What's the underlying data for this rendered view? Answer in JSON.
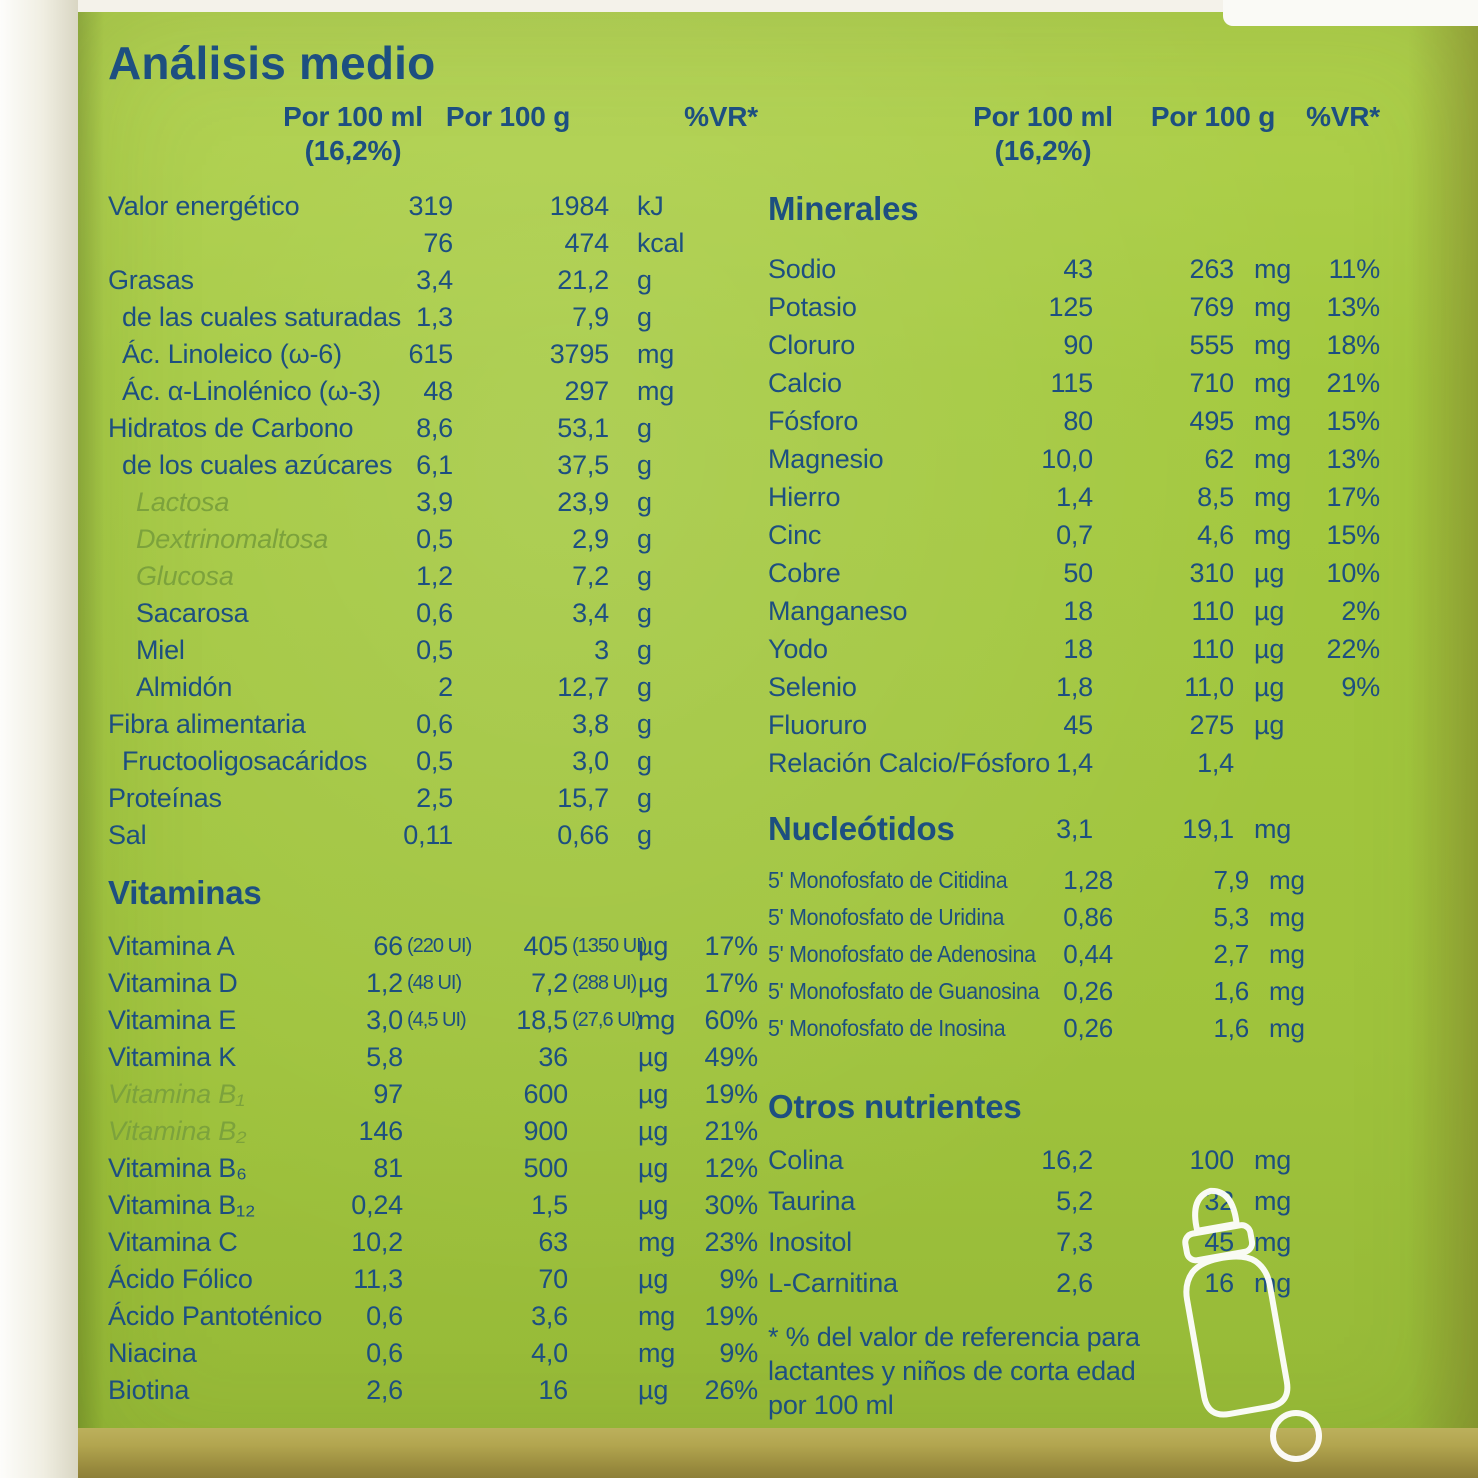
{
  "title": "Análisis medio",
  "columns": {
    "per100ml": "Por 100 ml",
    "per100ml_sub": "(16,2%)",
    "per100g": "Por 100 g",
    "vr": "%VR*"
  },
  "left": {
    "main_rows": [
      {
        "label": "Valor energético",
        "v1": "319",
        "v2": "1984",
        "unit": "kJ"
      },
      {
        "label": "",
        "v1": "76",
        "v2": "474",
        "unit": "kcal"
      },
      {
        "label": "Grasas",
        "v1": "3,4",
        "v2": "21,2",
        "unit": "g"
      },
      {
        "label": "de las cuales saturadas",
        "v1": "1,3",
        "v2": "7,9",
        "unit": "g",
        "indent": 1
      },
      {
        "label": "Ác. Linoleico (ω-6)",
        "v1": "615",
        "v2": "3795",
        "unit": "mg",
        "indent": 1
      },
      {
        "label": "Ác. α-Linolénico (ω-3)",
        "v1": "48",
        "v2": "297",
        "unit": "mg",
        "indent": 1
      },
      {
        "label": "Hidratos de Carbono",
        "v1": "8,6",
        "v2": "53,1",
        "unit": "g"
      },
      {
        "label": "de los cuales azúcares",
        "v1": "6,1",
        "v2": "37,5",
        "unit": "g",
        "indent": 1
      },
      {
        "label": "Lactosa",
        "v1": "3,9",
        "v2": "23,9",
        "unit": "g",
        "indent": 2,
        "style": "light"
      },
      {
        "label": "Dextrinomaltosa",
        "v1": "0,5",
        "v2": "2,9",
        "unit": "g",
        "indent": 2,
        "style": "light"
      },
      {
        "label": "Glucosa",
        "v1": "1,2",
        "v2": "7,2",
        "unit": "g",
        "indent": 2,
        "style": "light"
      },
      {
        "label": "Sacarosa",
        "v1": "0,6",
        "v2": "3,4",
        "unit": "g",
        "indent": 2
      },
      {
        "label": "Miel",
        "v1": "0,5",
        "v2": "3",
        "unit": "g",
        "indent": 2
      },
      {
        "label": "Almidón",
        "v1": "2",
        "v2": "12,7",
        "unit": "g",
        "indent": 2
      },
      {
        "label": "Fibra alimentaria",
        "v1": "0,6",
        "v2": "3,8",
        "unit": "g"
      },
      {
        "label": "Fructooligosacáridos",
        "v1": "0,5",
        "v2": "3,0",
        "unit": "g",
        "indent": 1
      },
      {
        "label": "Proteínas",
        "v1": "2,5",
        "v2": "15,7",
        "unit": "g"
      },
      {
        "label": "Sal",
        "v1": "0,11",
        "v2": "0,66",
        "unit": "g"
      }
    ],
    "vitamins_title": "Vitaminas",
    "vitamin_rows": [
      {
        "label": "Vitamina A",
        "v1": "66",
        "v1ui": "(220 UI)",
        "v2": "405",
        "v2ui": "(1350 UI)",
        "unit": "µg",
        "vr": "17%"
      },
      {
        "label": "Vitamina D",
        "v1": "1,2",
        "v1ui": "(48 UI)",
        "v2": "7,2",
        "v2ui": "(288 UI)",
        "unit": "µg",
        "vr": "17%"
      },
      {
        "label": "Vitamina E",
        "v1": "3,0",
        "v1ui": "(4,5 UI)",
        "v2": "18,5",
        "v2ui": "(27,6 UI)",
        "unit": "mg",
        "vr": "60%"
      },
      {
        "label": "Vitamina K",
        "v1": "5,8",
        "v2": "36",
        "unit": "µg",
        "vr": "49%"
      },
      {
        "label": "Vitamina B₁",
        "v1": "97",
        "v2": "600",
        "unit": "µg",
        "vr": "19%",
        "style": "light"
      },
      {
        "label": "Vitamina B₂",
        "v1": "146",
        "v2": "900",
        "unit": "µg",
        "vr": "21%",
        "style": "light"
      },
      {
        "label": "Vitamina B₆",
        "v1": "81",
        "v2": "500",
        "unit": "µg",
        "vr": "12%"
      },
      {
        "label": "Vitamina B₁₂",
        "v1": "0,24",
        "v2": "1,5",
        "unit": "µg",
        "vr": "30%"
      },
      {
        "label": "Vitamina C",
        "v1": "10,2",
        "v2": "63",
        "unit": "mg",
        "vr": "23%"
      },
      {
        "label": "Ácido Fólico",
        "v1": "11,3",
        "v2": "70",
        "unit": "µg",
        "vr": "9%"
      },
      {
        "label": "Ácido Pantoténico",
        "v1": "0,6",
        "v2": "3,6",
        "unit": "mg",
        "vr": "19%"
      },
      {
        "label": "Niacina",
        "v1": "0,6",
        "v2": "4,0",
        "unit": "mg",
        "vr": "9%"
      },
      {
        "label": "Biotina",
        "v1": "2,6",
        "v2": "16",
        "unit": "µg",
        "vr": "26%"
      }
    ]
  },
  "right": {
    "minerals_title": "Minerales",
    "mineral_rows": [
      {
        "label": "Sodio",
        "v1": "43",
        "v2": "263",
        "unit": "mg",
        "vr": "11%"
      },
      {
        "label": "Potasio",
        "v1": "125",
        "v2": "769",
        "unit": "mg",
        "vr": "13%"
      },
      {
        "label": "Cloruro",
        "v1": "90",
        "v2": "555",
        "unit": "mg",
        "vr": "18%"
      },
      {
        "label": "Calcio",
        "v1": "115",
        "v2": "710",
        "unit": "mg",
        "vr": "21%"
      },
      {
        "label": "Fósforo",
        "v1": "80",
        "v2": "495",
        "unit": "mg",
        "vr": "15%"
      },
      {
        "label": "Magnesio",
        "v1": "10,0",
        "v2": "62",
        "unit": "mg",
        "vr": "13%"
      },
      {
        "label": "Hierro",
        "v1": "1,4",
        "v2": "8,5",
        "unit": "mg",
        "vr": "17%"
      },
      {
        "label": "Cinc",
        "v1": "0,7",
        "v2": "4,6",
        "unit": "mg",
        "vr": "15%"
      },
      {
        "label": "Cobre",
        "v1": "50",
        "v2": "310",
        "unit": "µg",
        "vr": "10%"
      },
      {
        "label": "Manganeso",
        "v1": "18",
        "v2": "110",
        "unit": "µg",
        "vr": "2%"
      },
      {
        "label": "Yodo",
        "v1": "18",
        "v2": "110",
        "unit": "µg",
        "vr": "22%"
      },
      {
        "label": "Selenio",
        "v1": "1,8",
        "v2": "11,0",
        "unit": "µg",
        "vr": "9%"
      },
      {
        "label": "Fluoruro",
        "v1": "45",
        "v2": "275",
        "unit": "µg"
      },
      {
        "label": "Relación Calcio/Fósforo",
        "v1": "1,4",
        "v2": "1,4"
      }
    ],
    "nucleotides_header": [
      {
        "label": "Nucleótidos",
        "v1": "3,1",
        "v2": "19,1",
        "unit": "mg",
        "style": "header"
      }
    ],
    "nucleotide_rows": [
      {
        "label": "5' Monofosfato de Citidina",
        "v1": "1,28",
        "v2": "7,9",
        "unit": "mg"
      },
      {
        "label": "5' Monofosfato de Uridina",
        "v1": "0,86",
        "v2": "5,3",
        "unit": "mg"
      },
      {
        "label": "5' Monofosfato de Adenosina",
        "v1": "0,44",
        "v2": "2,7",
        "unit": "mg"
      },
      {
        "label": "5' Monofosfato de Guanosina",
        "v1": "0,26",
        "v2": "1,6",
        "unit": "mg"
      },
      {
        "label": "5' Monofosfato de Inosina",
        "v1": "0,26",
        "v2": "1,6",
        "unit": "mg"
      }
    ],
    "others_title": "Otros nutrientes",
    "other_rows": [
      {
        "label": "Colina",
        "v1": "16,2",
        "v2": "100",
        "unit": "mg"
      },
      {
        "label": "Taurina",
        "v1": "5,2",
        "v2": "32",
        "unit": "mg"
      },
      {
        "label": "Inositol",
        "v1": "7,3",
        "v2": "45",
        "unit": "mg"
      },
      {
        "label": "L-Carnitina",
        "v1": "2,6",
        "v2": "16",
        "unit": "mg"
      }
    ],
    "footnote": "* % del valor de referencia para lactantes y niños de corta edad por 100 ml"
  }
}
